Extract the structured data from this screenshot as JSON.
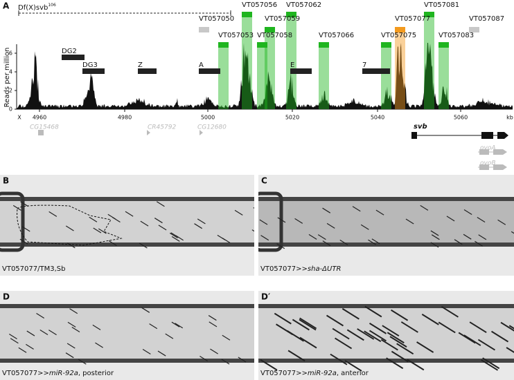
{
  "panel_a": {
    "label": "A",
    "deficiency": {
      "name": "Df(X)svb",
      "superscript": "106"
    },
    "y_axis_label": "Reads per million",
    "y_ticks": [
      "0",
      "2",
      "4",
      "6"
    ],
    "x_ticks": [
      "X",
      "4960",
      "4980",
      "5000",
      "5020",
      "5040",
      "5060",
      "kb"
    ],
    "fragments": [
      {
        "name": "VT057056",
        "color": "#1fb51f"
      },
      {
        "name": "VT057062",
        "color": "#1fb51f"
      },
      {
        "name": "VT057081",
        "color": "#1fb51f"
      },
      {
        "name": "VT057050",
        "color": "#c8c8c8"
      },
      {
        "name": "VT057059",
        "color": "#1fb51f"
      },
      {
        "name": "VT057077",
        "color": "#f39a1e"
      },
      {
        "name": "VT057087",
        "color": "#c8c8c8"
      },
      {
        "name": "VT057053",
        "color": "#1fb51f"
      },
      {
        "name": "VT057058",
        "color": "#1fb51f"
      },
      {
        "name": "VT057066",
        "color": "#1fb51f"
      },
      {
        "name": "VT057075",
        "color": "#1fb51f"
      },
      {
        "name": "VT057083",
        "color": "#1fb51f"
      }
    ],
    "regions": [
      "DG2",
      "DG3",
      "Z",
      "A",
      "E",
      "7"
    ],
    "genes": [
      "CG15468",
      "CR45792",
      "CG12680",
      "svb",
      "ovoA",
      "ovoB"
    ]
  },
  "panels": [
    {
      "label": "B",
      "caption": {
        "prefix": "VT057077/TM3,Sb"
      }
    },
    {
      "label": "C",
      "caption": {
        "prefix": "VT057077>>",
        "italic": "sha-ΔUTR"
      }
    },
    {
      "label": "D",
      "caption": {
        "prefix": "VT057077>>",
        "italic": "miR-92a",
        "suffix": ", posterior"
      }
    },
    {
      "label": "D′",
      "caption": {
        "prefix": "VT057077>>",
        "italic": "miR-92a",
        "suffix": ", anterior"
      }
    }
  ]
}
